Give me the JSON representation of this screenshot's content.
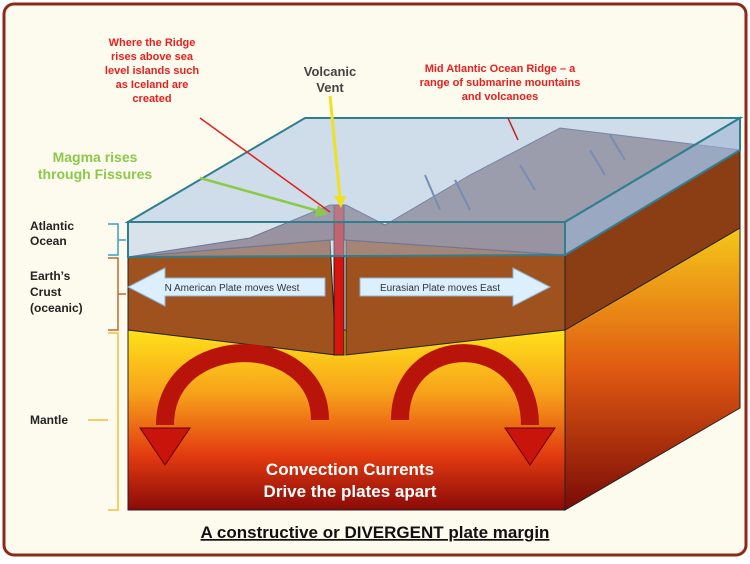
{
  "labels": {
    "ridge_islands": [
      "Where the Ridge",
      "rises above sea",
      "level islands such",
      "as Iceland are",
      "created"
    ],
    "vent": [
      "Volcanic",
      "Vent"
    ],
    "mid_ridge": [
      "Mid Atlantic Ocean Ridge – a",
      "range of submarine mountains",
      "and volcanoes"
    ],
    "magma": [
      "Magma rises",
      "through Fissures"
    ],
    "ocean": [
      "Atlantic",
      "Ocean"
    ],
    "crust": [
      "Earth’s",
      "Crust",
      "(oceanic)"
    ],
    "mantle": "Mantle",
    "west_plate": "N American Plate moves West",
    "east_plate": "Eurasian  Plate  moves  East",
    "convection": [
      "Convection Currents",
      "Drive the plates apart"
    ]
  },
  "title": "A constructive or DIVERGENT plate margin"
}
